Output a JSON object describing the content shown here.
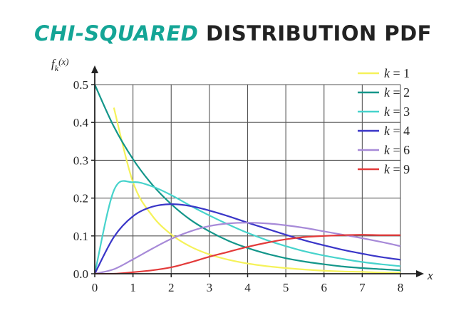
{
  "title": {
    "accent": "CHI-SQUARED",
    "rest": "DISTRIBUTION PDF"
  },
  "chart_data": {
    "type": "line",
    "xlabel": "x",
    "ylabel": "f_k(x)",
    "ylabel_base": "f",
    "ylabel_sub": "k",
    "ylabel_arg": "(x)",
    "xlim": [
      0,
      8
    ],
    "ylim": [
      0,
      0.5
    ],
    "xticks": [
      0,
      1,
      2,
      3,
      4,
      5,
      6,
      7,
      8
    ],
    "xtick_labels": [
      "0",
      "1",
      "2",
      "3",
      "4",
      "5",
      "6",
      "7",
      "8"
    ],
    "yticks": [
      0.0,
      0.1,
      0.2,
      0.3,
      0.4,
      0.5
    ],
    "ytick_labels": [
      "0.0",
      "0.1",
      "0.2",
      "0.3",
      "0.4",
      "0.5"
    ],
    "grid": true,
    "legend_position": "top-right",
    "legend_var": "k",
    "x": [
      0,
      0.5,
      1,
      1.5,
      2,
      2.5,
      3,
      3.5,
      4,
      4.5,
      5,
      5.5,
      6,
      6.5,
      7,
      7.5,
      8
    ],
    "series": [
      {
        "name": "k = 1",
        "k": 1,
        "label_value": "1",
        "color": "#f5f25a",
        "values": [
          null,
          0.439,
          0.242,
          0.154,
          0.104,
          0.072,
          0.051,
          0.037,
          0.027,
          0.02,
          0.015,
          0.011,
          0.008,
          0.006,
          0.005,
          0.003,
          0.003
        ]
      },
      {
        "name": "k = 2",
        "k": 2,
        "label_value": "2",
        "color": "#13968a",
        "values": [
          0.5,
          0.389,
          0.303,
          0.236,
          0.184,
          0.143,
          0.112,
          0.087,
          0.068,
          0.053,
          0.041,
          0.032,
          0.025,
          0.019,
          0.015,
          0.012,
          0.009
        ]
      },
      {
        "name": "k = 3",
        "k": 3,
        "label_value": "3",
        "color": "#47d3cc",
        "values": [
          0.0,
          0.22,
          0.242,
          0.231,
          0.208,
          0.18,
          0.154,
          0.13,
          0.108,
          0.089,
          0.073,
          0.059,
          0.048,
          0.039,
          0.031,
          0.025,
          0.02
        ]
      },
      {
        "name": "k = 4",
        "k": 4,
        "label_value": "4",
        "color": "#3a36c8",
        "values": [
          0.0,
          0.097,
          0.152,
          0.177,
          0.184,
          0.179,
          0.167,
          0.152,
          0.135,
          0.119,
          0.103,
          0.088,
          0.075,
          0.063,
          0.053,
          0.044,
          0.037
        ]
      },
      {
        "name": "k = 6",
        "k": 6,
        "label_value": "6",
        "color": "#a78ad8",
        "values": [
          0.0,
          0.012,
          0.038,
          0.066,
          0.092,
          0.112,
          0.126,
          0.133,
          0.135,
          0.133,
          0.128,
          0.121,
          0.112,
          0.103,
          0.094,
          0.084,
          0.073
        ]
      },
      {
        "name": "k = 9",
        "k": 9,
        "label_value": "9",
        "color": "#e33a3a",
        "values": [
          0.0,
          0.0,
          0.004,
          0.009,
          0.017,
          0.03,
          0.045,
          0.058,
          0.071,
          0.082,
          0.091,
          0.097,
          0.1,
          0.102,
          0.103,
          0.102,
          0.102
        ]
      }
    ]
  }
}
